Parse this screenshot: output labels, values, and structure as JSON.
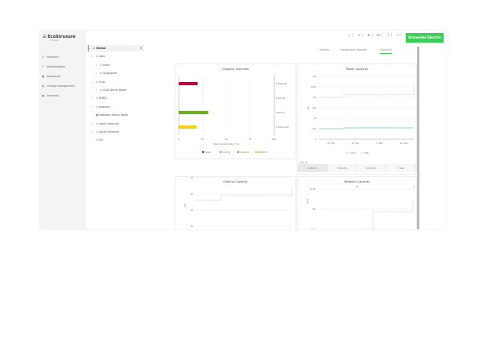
{
  "app": {
    "logo": "EcoStruxure",
    "logo_sub": "IT Advisor",
    "brand": "Schneider Electric"
  },
  "sidebar": {
    "items": [
      {
        "label": "Inventory",
        "icon": "cube-icon"
      },
      {
        "label": "Administration",
        "icon": "users-icon"
      },
      {
        "label": "Dashboard",
        "icon": "dashboard-icon"
      },
      {
        "label": "Change management",
        "icon": "clipboard-icon"
      },
      {
        "label": "Genomes",
        "icon": "grid-icon"
      }
    ]
  },
  "tree": {
    "items": [
      {
        "label": "Global",
        "level": 0,
        "expander": "⌄"
      },
      {
        "label": "Asia",
        "level": 1,
        "expander": "⌄"
      },
      {
        "label": "India",
        "level": 2,
        "expander": "›"
      },
      {
        "label": "Singapore",
        "level": 2,
        "expander": "›"
      },
      {
        "label": "Colo",
        "level": 1,
        "expander": "⌄"
      },
      {
        "label": "Colo Demo Room",
        "level": 2,
        "expander": "›"
      },
      {
        "label": "EMEA",
        "level": 1,
        "expander": "›"
      },
      {
        "label": "Istanbul",
        "level": 1,
        "expander": "›"
      },
      {
        "label": "Network Demo Room",
        "level": 1,
        "expander": ""
      },
      {
        "label": "North America",
        "level": 1,
        "expander": "›"
      },
      {
        "label": "South America",
        "level": 1,
        "expander": "›"
      },
      {
        "label": "US",
        "level": 1,
        "expander": ""
      }
    ]
  },
  "header": {
    "icons": [
      "search-icon",
      "bell-icon",
      "gear-icon",
      "glasses-icon",
      "help-icon",
      "logout-icon"
    ]
  },
  "tabs": [
    {
      "label": "Details"
    },
    {
      "label": "Equipment Browser"
    },
    {
      "label": "Capacity",
      "active": true
    }
  ],
  "chart_data": [
    {
      "type": "bar",
      "title": "Capacity overview",
      "xlabel": "Total Consumption (%)",
      "xlim": [
        0,
        100
      ],
      "xticks": [
        "0",
        "25",
        "50",
        "75",
        "100"
      ],
      "categories": [
        "Power",
        "Cooling",
        "U-space",
        "Network"
      ],
      "values": [
        20,
        0,
        31,
        19
      ],
      "right_labels": [
        "13608 kW",
        "6126 kW",
        "32925 U",
        "17908 ports"
      ],
      "colors": [
        "#b5093b",
        "#42b4e6",
        "#6cab22",
        "#f0d21c"
      ],
      "legend": "bottom"
    },
    {
      "type": "line",
      "title": "Power Capacity",
      "ylabel": "kW",
      "yticks": [
        "0",
        "2.5k",
        "5k",
        "7.5k",
        "10k",
        "12.5k",
        "15k"
      ],
      "ylim": [
        0,
        15000
      ],
      "xticks": [
        "18. Feb",
        "26. Feb",
        "6. Mar",
        "14. Mar"
      ],
      "series": [
        {
          "name": "Used",
          "color": "#4fb3a8",
          "dash": false,
          "values": [
            2500,
            2500,
            2500,
            2500,
            2500,
            2700,
            2700,
            2700,
            2700,
            2700,
            2700,
            2700,
            2700,
            2700,
            2700,
            2700,
            2700,
            2700,
            2700,
            2700
          ]
        },
        {
          "name": "Total",
          "color": "#aaaaaa",
          "dash": true,
          "values": [
            10000,
            10000,
            10000,
            10000,
            10000,
            10600,
            10600,
            10600,
            10600,
            10600,
            10600,
            10600,
            10600,
            10600,
            10600,
            10600,
            10600,
            10600,
            10600,
            13000
          ]
        }
      ],
      "legend": "bottom",
      "filter_label": "Filter By",
      "filters": [
        "1 Month",
        "3 Months",
        "6 Months",
        "1 Year"
      ],
      "active_filter": "1 Month"
    },
    {
      "type": "line",
      "title": "Cooling Capacity",
      "ylabel": "kW",
      "yticks": [
        "4k",
        "5k",
        "6k",
        "7k"
      ],
      "ylim": [
        3500,
        7000
      ],
      "series": [
        {
          "name": "Total",
          "color": "#aaaaaa",
          "dash": true,
          "values": [
            5600,
            5600,
            5600,
            5600,
            5600,
            5900,
            5900,
            5900,
            5900,
            5900,
            5900,
            5900,
            5900,
            5900,
            5900,
            5900,
            5900,
            5900,
            5900,
            6300
          ]
        }
      ]
    },
    {
      "type": "line",
      "title": "Network Capacity",
      "dropdown": "All",
      "ylabel": "Ports",
      "yticks": [
        "7.5k",
        "10k",
        "12.5k",
        "15k"
      ],
      "ylim": [
        6500,
        15000
      ],
      "series": [
        {
          "name": "Total",
          "color": "#aaaaaa",
          "dash": true,
          "values": [
            6000,
            6000,
            6000,
            6000,
            6000,
            6000,
            6000,
            6000,
            6000,
            6000,
            6000,
            9700,
            9700,
            9700,
            9700,
            9700,
            9700,
            9700,
            9700,
            11200
          ]
        }
      ]
    }
  ]
}
